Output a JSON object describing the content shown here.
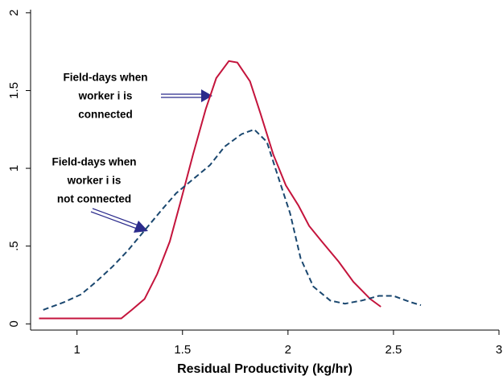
{
  "chart_data": {
    "type": "line",
    "xlabel": "Residual Productivity (kg/hr)",
    "xlim": [
      0.78,
      3.0
    ],
    "xticks": [
      1,
      1.5,
      2,
      2.5,
      3
    ],
    "ylim": [
      -0.04,
      2.02
    ],
    "yticks": [
      0,
      {
        "value": 0.5,
        "label": ".5"
      },
      1,
      1.5,
      2
    ],
    "grid": false,
    "series": [
      {
        "color": "#c4143c",
        "dash": "solid",
        "x": [
          0.82,
          1.21,
          1.26,
          1.32,
          1.38,
          1.44,
          1.49,
          1.55,
          1.61,
          1.66,
          1.72,
          1.76,
          1.82,
          1.87,
          1.93,
          1.99,
          2.05,
          2.1,
          2.16,
          2.24,
          2.31,
          2.39,
          2.44
        ],
        "values": [
          0.035,
          0.035,
          0.09,
          0.16,
          0.32,
          0.53,
          0.78,
          1.09,
          1.38,
          1.58,
          1.69,
          1.68,
          1.56,
          1.35,
          1.09,
          0.89,
          0.76,
          0.63,
          0.53,
          0.4,
          0.27,
          0.16,
          0.11
        ]
      },
      {
        "color": "#1a476f",
        "dash": "dashed",
        "x": [
          0.84,
          0.94,
          1.02,
          1.09,
          1.17,
          1.24,
          1.32,
          1.4,
          1.47,
          1.55,
          1.63,
          1.7,
          1.78,
          1.84,
          1.9,
          1.95,
          2.01,
          2.06,
          2.12,
          2.2,
          2.27,
          2.35,
          2.43,
          2.5,
          2.58,
          2.63
        ],
        "values": [
          0.09,
          0.14,
          0.19,
          0.27,
          0.37,
          0.47,
          0.6,
          0.73,
          0.84,
          0.93,
          1.02,
          1.14,
          1.22,
          1.25,
          1.17,
          0.96,
          0.71,
          0.42,
          0.24,
          0.15,
          0.13,
          0.15,
          0.18,
          0.18,
          0.14,
          0.12
        ]
      }
    ],
    "annotations": [
      {
        "lines": [
          "Field-days when",
          "worker i is",
          "connected"
        ]
      },
      {
        "lines": [
          "Field-days when",
          "worker i is",
          "not connected"
        ]
      }
    ]
  }
}
